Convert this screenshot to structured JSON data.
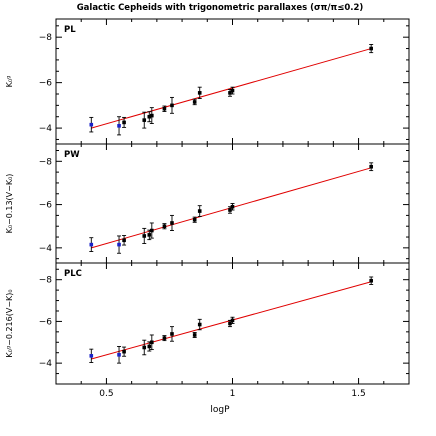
{
  "chart_data": {
    "type": "scatter",
    "title": "Galactic Cepheids with trigonometric parallaxes (σπ/π≤0.2)",
    "xlabel": "logP",
    "xlim": [
      0.3,
      1.7
    ],
    "xticks": [
      0.5,
      1,
      1.5
    ],
    "xtick_labels": [
      "0.5",
      "1",
      "1.5"
    ],
    "panels": [
      {
        "tag": "PL",
        "ylabel": "K₀ᵍ",
        "ylim": [
          -3.3,
          -8.8
        ],
        "yticks": [
          -4,
          -6,
          -8
        ],
        "ytick_labels": [
          "−4",
          "−6",
          "−8"
        ],
        "fit": [
          [
            0.44,
            -4.0
          ],
          [
            1.55,
            -7.5
          ]
        ],
        "points": [
          {
            "x": 0.44,
            "y": -4.15,
            "err": 0.32,
            "color": "#1a22c8"
          },
          {
            "x": 0.55,
            "y": -4.1,
            "err": 0.4,
            "color": "#1a22c8"
          },
          {
            "x": 0.57,
            "y": -4.25,
            "err": 0.22,
            "color": "#000000"
          },
          {
            "x": 0.65,
            "y": -4.35,
            "err": 0.35,
            "color": "#000000"
          },
          {
            "x": 0.67,
            "y": -4.5,
            "err": 0.22,
            "color": "#000000"
          },
          {
            "x": 0.68,
            "y": -4.55,
            "err": 0.35,
            "color": "#000000"
          },
          {
            "x": 0.73,
            "y": -4.85,
            "err": 0.12,
            "color": "#000000"
          },
          {
            "x": 0.76,
            "y": -5.0,
            "err": 0.35,
            "color": "#000000"
          },
          {
            "x": 0.85,
            "y": -5.15,
            "err": 0.12,
            "color": "#000000"
          },
          {
            "x": 0.87,
            "y": -5.55,
            "err": 0.25,
            "color": "#000000"
          },
          {
            "x": 0.99,
            "y": -5.55,
            "err": 0.15,
            "color": "#000000"
          },
          {
            "x": 1.0,
            "y": -5.65,
            "err": 0.15,
            "color": "#000000"
          },
          {
            "x": 1.55,
            "y": -7.5,
            "err": 0.18,
            "color": "#000000"
          }
        ]
      },
      {
        "tag": "PW",
        "ylabel": "K₀−0.13(V−K₀)",
        "ylim": [
          -3.3,
          -8.8
        ],
        "yticks": [
          -4,
          -6,
          -8
        ],
        "ytick_labels": [
          "−4",
          "−6",
          "−8"
        ],
        "fit": [
          [
            0.44,
            -4.0
          ],
          [
            1.55,
            -7.7
          ]
        ],
        "points": [
          {
            "x": 0.44,
            "y": -4.15,
            "err": 0.32,
            "color": "#1a22c8"
          },
          {
            "x": 0.55,
            "y": -4.15,
            "err": 0.4,
            "color": "#1a22c8"
          },
          {
            "x": 0.57,
            "y": -4.35,
            "err": 0.22,
            "color": "#000000"
          },
          {
            "x": 0.65,
            "y": -4.55,
            "err": 0.35,
            "color": "#000000"
          },
          {
            "x": 0.67,
            "y": -4.6,
            "err": 0.22,
            "color": "#000000"
          },
          {
            "x": 0.68,
            "y": -4.8,
            "err": 0.35,
            "color": "#000000"
          },
          {
            "x": 0.73,
            "y": -5.0,
            "err": 0.12,
            "color": "#000000"
          },
          {
            "x": 0.76,
            "y": -5.15,
            "err": 0.35,
            "color": "#000000"
          },
          {
            "x": 0.85,
            "y": -5.3,
            "err": 0.12,
            "color": "#000000"
          },
          {
            "x": 0.87,
            "y": -5.7,
            "err": 0.25,
            "color": "#000000"
          },
          {
            "x": 0.99,
            "y": -5.75,
            "err": 0.15,
            "color": "#000000"
          },
          {
            "x": 1.0,
            "y": -5.9,
            "err": 0.15,
            "color": "#000000"
          },
          {
            "x": 1.55,
            "y": -7.75,
            "err": 0.18,
            "color": "#000000"
          }
        ]
      },
      {
        "tag": "PLC",
        "ylabel": "K₀ᵍ−0.216(V−K)₀",
        "ylim": [
          -3.0,
          -8.8
        ],
        "yticks": [
          -4,
          -6,
          -8
        ],
        "ytick_labels": [
          "−4",
          "−6",
          "−8"
        ],
        "fit": [
          [
            0.44,
            -4.2
          ],
          [
            1.55,
            -7.9
          ]
        ],
        "points": [
          {
            "x": 0.44,
            "y": -4.35,
            "err": 0.32,
            "color": "#1a22c8"
          },
          {
            "x": 0.55,
            "y": -4.4,
            "err": 0.4,
            "color": "#1a22c8"
          },
          {
            "x": 0.57,
            "y": -4.55,
            "err": 0.22,
            "color": "#000000"
          },
          {
            "x": 0.65,
            "y": -4.75,
            "err": 0.35,
            "color": "#000000"
          },
          {
            "x": 0.67,
            "y": -4.8,
            "err": 0.22,
            "color": "#000000"
          },
          {
            "x": 0.68,
            "y": -5.0,
            "err": 0.35,
            "color": "#000000"
          },
          {
            "x": 0.73,
            "y": -5.2,
            "err": 0.12,
            "color": "#000000"
          },
          {
            "x": 0.76,
            "y": -5.4,
            "err": 0.35,
            "color": "#000000"
          },
          {
            "x": 0.85,
            "y": -5.35,
            "err": 0.12,
            "color": "#000000"
          },
          {
            "x": 0.87,
            "y": -5.85,
            "err": 0.25,
            "color": "#000000"
          },
          {
            "x": 0.99,
            "y": -5.9,
            "err": 0.15,
            "color": "#000000"
          },
          {
            "x": 1.0,
            "y": -6.05,
            "err": 0.15,
            "color": "#000000"
          },
          {
            "x": 1.55,
            "y": -7.95,
            "err": 0.18,
            "color": "#000000"
          }
        ]
      }
    ],
    "fit_color": "#e00000",
    "grid": false
  }
}
